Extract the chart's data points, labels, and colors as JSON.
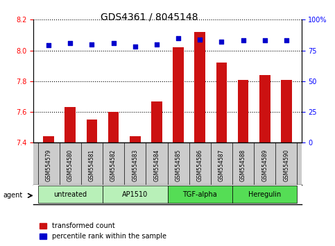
{
  "title": "GDS4361 / 8045148",
  "samples": [
    "GSM554579",
    "GSM554580",
    "GSM554581",
    "GSM554582",
    "GSM554583",
    "GSM554584",
    "GSM554585",
    "GSM554586",
    "GSM554587",
    "GSM554588",
    "GSM554589",
    "GSM554590"
  ],
  "red_values": [
    7.44,
    7.63,
    7.55,
    7.6,
    7.44,
    7.67,
    8.02,
    8.12,
    7.92,
    7.81,
    7.84,
    7.81
  ],
  "blue_values": [
    79,
    81,
    80,
    81,
    78,
    80,
    85,
    84,
    82,
    83,
    83,
    83
  ],
  "ylim_left": [
    7.4,
    8.2
  ],
  "ylim_right": [
    0,
    100
  ],
  "yticks_left": [
    7.4,
    7.6,
    7.8,
    8.0,
    8.2
  ],
  "yticks_right": [
    0,
    25,
    50,
    75,
    100
  ],
  "ytick_labels_right": [
    "0",
    "25",
    "50",
    "75",
    "100%"
  ],
  "groups": [
    {
      "label": "untreated",
      "start": 0,
      "end": 3,
      "color": "#ccffcc"
    },
    {
      "label": "AP1510",
      "start": 3,
      "end": 6,
      "color": "#ccffcc"
    },
    {
      "label": "TGF-alpha",
      "start": 6,
      "end": 9,
      "color": "#66dd66"
    },
    {
      "label": "Heregulin",
      "start": 9,
      "end": 12,
      "color": "#66dd66"
    }
  ],
  "red_color": "#cc1111",
  "blue_color": "#0000cc",
  "grid_color": "#000000",
  "bar_width": 0.5,
  "legend_labels": [
    "transformed count",
    "percentile rank within the sample"
  ],
  "agent_label": "agent",
  "background_plot": "#ffffff",
  "tick_area_color": "#cccccc"
}
